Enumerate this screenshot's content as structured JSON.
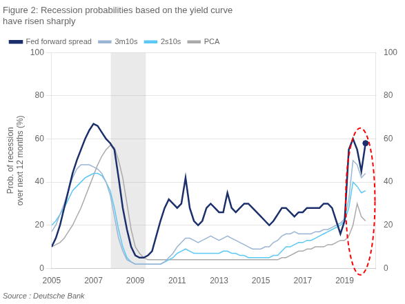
{
  "chart_data": {
    "type": "line",
    "title": [
      "Figure 2: Recession probabilities based on the yield curve",
      "have risen sharply"
    ],
    "ylabel": [
      "Prob. of recession",
      "over next 12 months (%)"
    ],
    "source": "Source : Deutsche Bank",
    "x": [
      2005.0,
      2005.2,
      2005.4,
      2005.6,
      2005.8,
      2006.0,
      2006.2,
      2006.4,
      2006.6,
      2006.8,
      2007.0,
      2007.2,
      2007.4,
      2007.6,
      2007.8,
      2008.0,
      2008.2,
      2008.4,
      2008.6,
      2008.8,
      2009.0,
      2009.2,
      2009.4,
      2009.6,
      2009.8,
      2010.0,
      2010.2,
      2010.4,
      2010.6,
      2010.8,
      2011.0,
      2011.2,
      2011.4,
      2011.6,
      2011.8,
      2012.0,
      2012.2,
      2012.4,
      2012.6,
      2012.8,
      2013.0,
      2013.2,
      2013.4,
      2013.6,
      2013.8,
      2014.0,
      2014.2,
      2014.4,
      2014.6,
      2014.8,
      2015.0,
      2015.2,
      2015.4,
      2015.6,
      2015.8,
      2016.0,
      2016.2,
      2016.4,
      2016.6,
      2016.8,
      2017.0,
      2017.2,
      2017.4,
      2017.6,
      2017.8,
      2018.0,
      2018.2,
      2018.4,
      2018.6,
      2018.8,
      2019.0,
      2019.2,
      2019.4,
      2019.6,
      2019.8,
      2020.0
    ],
    "series": [
      {
        "name": "PCA",
        "color": "#aaaaaa",
        "values": [
          10,
          11,
          12,
          14,
          17,
          20,
          24,
          28,
          33,
          38,
          43,
          48,
          52,
          55,
          57,
          56,
          50,
          42,
          30,
          18,
          10,
          7,
          5,
          4,
          4,
          4,
          4,
          4,
          4,
          4,
          4,
          4,
          4,
          4,
          4,
          4,
          4,
          4,
          4,
          4,
          4,
          4,
          4,
          4,
          4,
          4,
          4,
          4,
          4,
          4,
          4,
          4,
          4,
          4,
          4,
          5,
          5,
          6,
          7,
          8,
          8,
          9,
          9,
          10,
          10,
          10,
          11,
          11,
          12,
          13,
          13,
          15,
          20,
          30,
          24,
          22
        ]
      },
      {
        "name": "2s10s",
        "color": "#5bc8f5",
        "values": [
          20,
          22,
          25,
          28,
          32,
          36,
          38,
          40,
          42,
          43,
          44,
          44,
          43,
          40,
          36,
          28,
          18,
          10,
          5,
          3,
          2,
          2,
          2,
          2,
          2,
          2,
          2,
          3,
          4,
          5,
          7,
          8,
          9,
          8,
          7,
          7,
          7,
          7,
          7,
          7,
          7,
          8,
          8,
          7,
          7,
          6,
          6,
          5,
          5,
          5,
          5,
          5,
          5,
          6,
          6,
          8,
          10,
          10,
          11,
          12,
          12,
          13,
          13,
          14,
          15,
          16,
          17,
          18,
          19,
          20,
          22,
          28,
          40,
          38,
          35,
          36
        ]
      },
      {
        "name": "3m10s",
        "color": "#9ab5d4",
        "values": [
          17,
          20,
          25,
          30,
          36,
          42,
          46,
          48,
          48,
          48,
          47,
          46,
          44,
          40,
          34,
          24,
          14,
          8,
          4,
          3,
          2,
          2,
          2,
          2,
          2,
          2,
          2,
          3,
          5,
          7,
          10,
          12,
          14,
          14,
          13,
          12,
          13,
          14,
          15,
          14,
          13,
          14,
          15,
          14,
          13,
          12,
          11,
          10,
          9,
          9,
          9,
          10,
          10,
          12,
          13,
          15,
          16,
          16,
          17,
          16,
          16,
          16,
          16,
          17,
          17,
          18,
          18,
          19,
          20,
          21,
          23,
          32,
          50,
          48,
          42,
          44
        ]
      },
      {
        "name": "Fed forward spread",
        "color": "#1a2f6b",
        "values": [
          10,
          14,
          20,
          28,
          36,
          44,
          50,
          55,
          60,
          64,
          67,
          66,
          63,
          60,
          58,
          55,
          42,
          28,
          18,
          10,
          6,
          5,
          5,
          6,
          8,
          15,
          22,
          28,
          32,
          30,
          28,
          30,
          42,
          28,
          22,
          20,
          22,
          28,
          30,
          28,
          26,
          26,
          35,
          28,
          26,
          28,
          30,
          30,
          28,
          26,
          24,
          22,
          20,
          22,
          25,
          28,
          28,
          26,
          24,
          26,
          26,
          28,
          28,
          28,
          28,
          30,
          30,
          28,
          22,
          16,
          22,
          55,
          60,
          55,
          45,
          58
        ]
      }
    ],
    "markers": [
      {
        "x": 2020.0,
        "y": 58,
        "color": "#1a2f6b"
      }
    ],
    "shaded_x_ranges": [
      [
        2007.83,
        2009.5
      ]
    ],
    "ellipse": {
      "center": [
        2019.75,
        31
      ],
      "width": 1.4,
      "height": 68,
      "color": "red",
      "line_style": "dashed"
    },
    "xlim": [
      2005.0,
      2020.5
    ],
    "xticks": [
      2005,
      2007,
      2009,
      2011,
      2013,
      2015,
      2017,
      2019
    ],
    "ylim": [
      0,
      100
    ],
    "yticks": [
      0,
      20,
      40,
      60,
      80,
      100
    ],
    "y2lim": [
      0,
      100
    ],
    "y2ticks": [
      0,
      20,
      40,
      60,
      80,
      100
    ],
    "grid": "y",
    "legend": "top"
  }
}
